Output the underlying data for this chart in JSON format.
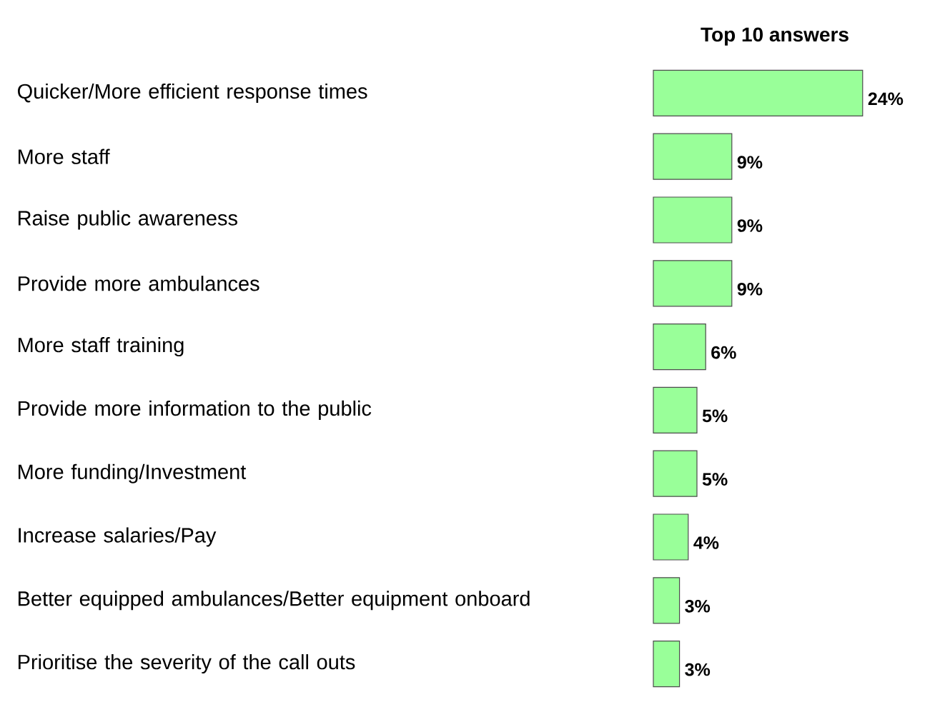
{
  "chart_data": {
    "type": "bar",
    "orientation": "horizontal",
    "title": "Top 10 answers",
    "categories": [
      "Quicker/More efficient response times",
      "More staff",
      "Raise public awareness",
      "Provide more ambulances",
      "More staff training",
      "Provide more information to the public",
      "More funding/Investment",
      "Increase salaries/Pay",
      "Better equipped ambulances/Better equipment onboard",
      "Prioritise the severity of the call outs"
    ],
    "values": [
      24,
      9,
      9,
      9,
      6,
      5,
      5,
      4,
      3,
      3
    ],
    "value_labels": [
      "24%",
      "9%",
      "9%",
      "9%",
      "6%",
      "5%",
      "5%",
      "4%",
      "3%",
      "3%"
    ],
    "color": "#99ff99"
  }
}
